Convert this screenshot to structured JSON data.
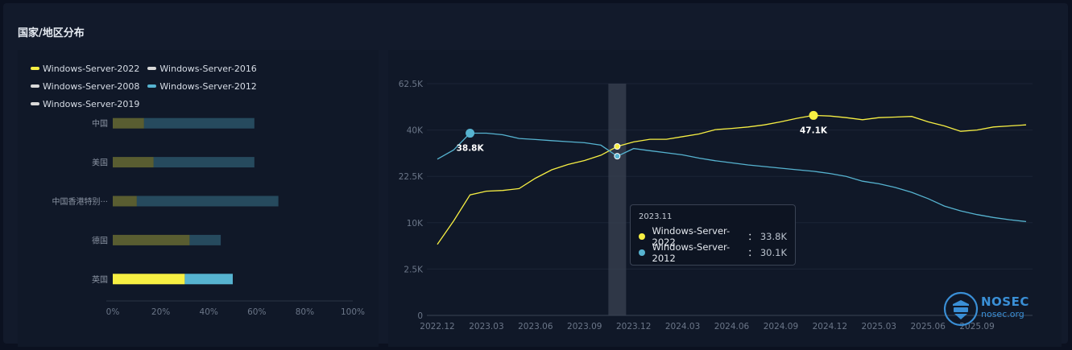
{
  "section_title": "国家/地区分布",
  "colors": {
    "yellow": "#f7ef43",
    "blue": "#56b3d0",
    "gray": "#d9d9d9"
  },
  "chart_data": [
    {
      "type": "bar",
      "orientation": "horizontal",
      "stacked": true,
      "legend": [
        {
          "name": "Windows-Server-2022",
          "color": "#f7ef43"
        },
        {
          "name": "Windows-Server-2016",
          "color": "#d9d9d9"
        },
        {
          "name": "Windows-Server-2008",
          "color": "#d9d9d9"
        },
        {
          "name": "Windows-Server-2012",
          "color": "#56b3d0"
        },
        {
          "name": "Windows-Server-2019",
          "color": "#d9d9d9"
        }
      ],
      "categories": [
        "中国",
        "美国",
        "中国香港特别···",
        "德国",
        "英国"
      ],
      "highlighted_category": "英国",
      "series": [
        {
          "name": "Windows-Server-2022",
          "values": [
            13,
            17,
            10,
            32,
            30
          ]
        },
        {
          "name": "Windows-Server-2012",
          "values": [
            46,
            42,
            59,
            13,
            20
          ]
        }
      ],
      "xlim": [
        0,
        100
      ],
      "xticks": [
        "0%",
        "20%",
        "40%",
        "60%",
        "80%",
        "100%"
      ]
    },
    {
      "type": "line",
      "y_ticks": [
        "0",
        "2.5K",
        "10K",
        "22.5K",
        "40K",
        "62.5K"
      ],
      "x_ticks": [
        "2022.12",
        "2023.03",
        "2023.06",
        "2023.09",
        "2023.12",
        "2024.03",
        "2024.06",
        "2024.09",
        "2024.12",
        "2025.03",
        "2025.06",
        "2025.09"
      ],
      "x_start": "2022.12",
      "series": [
        {
          "name": "Windows-Server-2022",
          "color": "#f7ef43",
          "values": [
            6.5,
            10.5,
            17.5,
            18.5,
            18.7,
            19.2,
            22,
            25,
            27,
            28.5,
            30.5,
            33.8,
            35.5,
            36.5,
            36.5,
            37.5,
            38.5,
            40.2,
            40.8,
            41.5,
            42.5,
            44,
            45.7,
            47.1,
            46.8,
            46,
            45,
            46,
            46.3,
            46.6,
            44,
            42,
            39.5,
            40,
            41.5,
            42,
            42.5
          ]
        },
        {
          "name": "Windows-Server-2012",
          "color": "#56b3d0",
          "values": [
            29,
            32.5,
            38.8,
            38.8,
            38.2,
            36.8,
            36.4,
            36,
            35.6,
            35.2,
            34.3,
            30.1,
            33,
            32.2,
            31.4,
            30.6,
            29.4,
            28.4,
            27.6,
            26.8,
            26.2,
            25.6,
            25,
            24.4,
            23.6,
            22.5,
            21.2,
            20.5,
            19.5,
            18.2,
            16.5,
            14.5,
            13.2,
            12.2,
            11.4,
            10.8,
            10.3
          ]
        }
      ],
      "max_labels": [
        {
          "series": "Windows-Server-2012",
          "label": "38.8K"
        },
        {
          "series": "Windows-Server-2022",
          "label": "47.1K"
        }
      ],
      "hover": {
        "period": "2023.11",
        "rows": [
          {
            "name": "Windows-Server-2022",
            "sep": "：",
            "value": "33.8K",
            "color": "#f7ef43"
          },
          {
            "name": "Windows-Server-2012",
            "sep": "：",
            "value": "30.1K",
            "color": "#56b3d0"
          }
        ]
      }
    }
  ],
  "logo": {
    "brand": "NOSEC",
    "domain": "nosec.org"
  }
}
